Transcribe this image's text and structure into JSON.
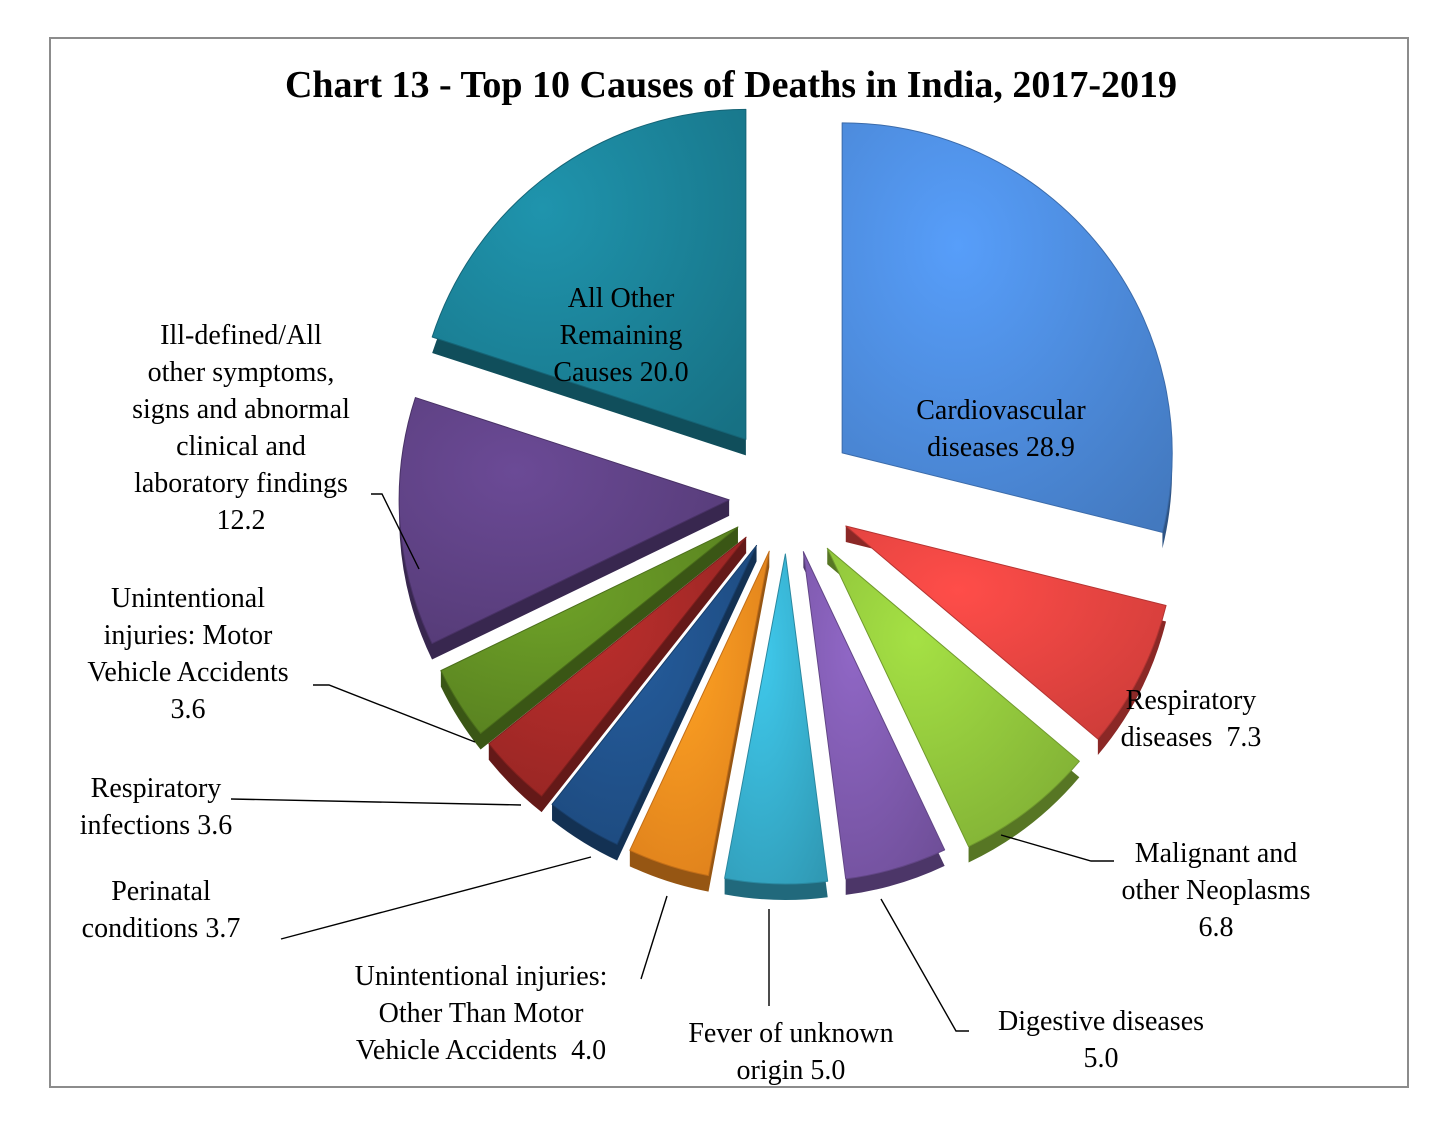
{
  "chart_data": {
    "type": "pie",
    "title": "Chart 13 - Top 10 Causes of Deaths in India, 2017-2019",
    "exploded": true,
    "slices": [
      {
        "label_lines": [
          "Cardiovascular",
          "diseases 28.9"
        ],
        "value": 28.9,
        "color": "#4a86d4"
      },
      {
        "label_lines": [
          "Respiratory",
          "diseases  7.3"
        ],
        "value": 7.3,
        "color": "#e0413e"
      },
      {
        "label_lines": [
          "Malignant and",
          "other Neoplasms",
          "6.8"
        ],
        "value": 6.8,
        "color": "#8cbf3a"
      },
      {
        "label_lines": [
          "Digestive diseases",
          "5.0"
        ],
        "value": 5.0,
        "color": "#7a57a8"
      },
      {
        "label_lines": [
          "Fever of unknown",
          "origin 5.0"
        ],
        "value": 5.0,
        "color": "#35aac8"
      },
      {
        "label_lines": [
          "Unintentional injuries:",
          "Other Than Motor",
          "Vehicle Accidents  4.0"
        ],
        "value": 4.0,
        "color": "#f28a1e"
      },
      {
        "label_lines": [
          "Perinatal",
          "conditions 3.7"
        ],
        "value": 3.7,
        "color": "#1f4f86"
      },
      {
        "label_lines": [
          "Respiratory",
          "infections 3.6"
        ],
        "value": 3.6,
        "color": "#a12826"
      },
      {
        "label_lines": [
          "Unintentional",
          "injuries: Motor",
          "Vehicle Accidents",
          "3.6"
        ],
        "value": 3.6,
        "color": "#5e8a22"
      },
      {
        "label_lines": [
          "Ill-defined/All",
          "other symptoms,",
          "signs and abnormal",
          "clinical and",
          "laboratory findings",
          "12.2"
        ],
        "value": 12.2,
        "color": "#5b3f7f"
      },
      {
        "label_lines": [
          "All Other",
          "Remaining",
          "Causes 20.0"
        ],
        "value": 20.0,
        "color": "#1a7d93"
      }
    ]
  }
}
